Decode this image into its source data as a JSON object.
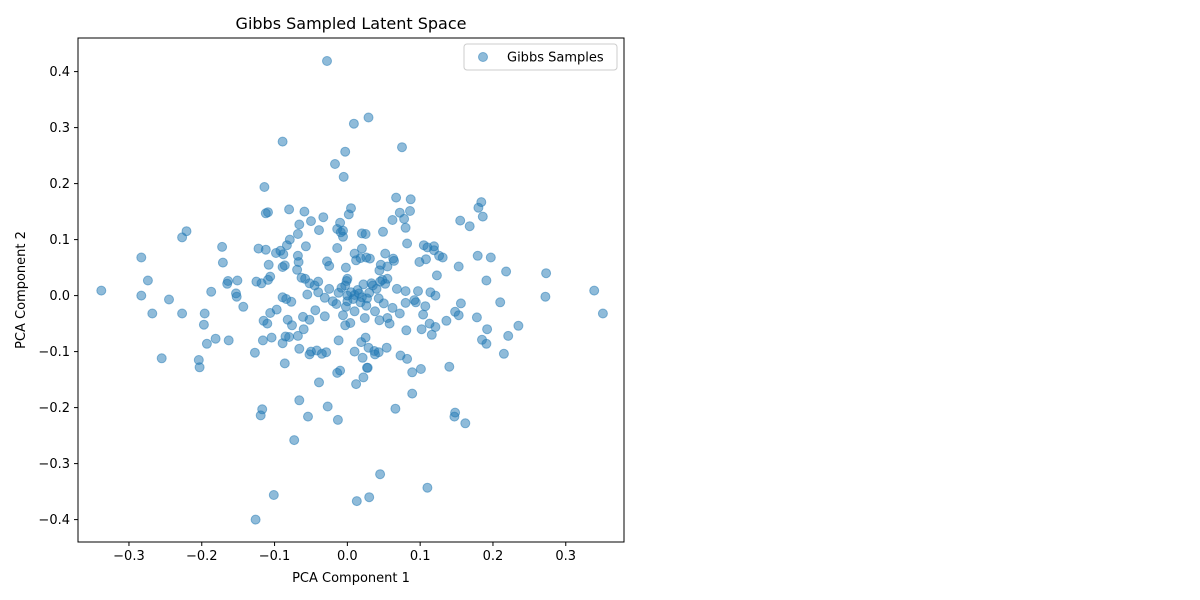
{
  "chart_data": {
    "type": "scatter",
    "title": "Gibbs Sampled Latent Space",
    "xlabel": "PCA Component 1",
    "ylabel": "PCA Component 2",
    "xlim": [
      -0.37,
      0.38
    ],
    "ylim": [
      -0.44,
      0.46
    ],
    "xticks": [
      -0.3,
      -0.2,
      -0.1,
      0.0,
      0.1,
      0.2,
      0.3
    ],
    "yticks": [
      -0.4,
      -0.3,
      -0.2,
      -0.1,
      0.0,
      0.1,
      0.2,
      0.3,
      0.4
    ],
    "xtick_labels": [
      "−0.3",
      "−0.2",
      "−0.1",
      "0.0",
      "0.1",
      "0.2",
      "0.3"
    ],
    "ytick_labels": [
      "−0.4",
      "−0.3",
      "−0.2",
      "−0.1",
      "0.0",
      "0.1",
      "0.2",
      "0.3",
      "0.4"
    ],
    "grid": false,
    "legend_position": "upper right",
    "color": "#1f77b4",
    "alpha": 0.5,
    "series": [
      {
        "name": "Gibbs Samples",
        "points": [
          [
            -0.028,
            0.419
          ],
          [
            0.029,
            0.318
          ],
          [
            0.009,
            0.307
          ],
          [
            -0.089,
            0.275
          ],
          [
            0.075,
            0.265
          ],
          [
            -0.003,
            0.257
          ],
          [
            -0.017,
            0.235
          ],
          [
            -0.005,
            0.212
          ],
          [
            -0.114,
            0.194
          ],
          [
            0.067,
            0.175
          ],
          [
            0.087,
            0.172
          ],
          [
            0.184,
            0.167
          ],
          [
            0.18,
            0.157
          ],
          [
            -0.08,
            0.154
          ],
          [
            0.005,
            0.156
          ],
          [
            -0.059,
            0.15
          ],
          [
            -0.109,
            0.149
          ],
          [
            -0.112,
            0.147
          ],
          [
            0.072,
            0.148
          ],
          [
            0.086,
            0.151
          ],
          [
            0.002,
            0.145
          ],
          [
            0.078,
            0.137
          ],
          [
            0.186,
            0.141
          ],
          [
            -0.033,
            0.14
          ],
          [
            -0.05,
            0.133
          ],
          [
            0.062,
            0.135
          ],
          [
            0.155,
            0.134
          ],
          [
            0.168,
            0.124
          ],
          [
            -0.066,
            0.127
          ],
          [
            -0.01,
            0.13
          ],
          [
            0.08,
            0.121
          ],
          [
            -0.039,
            0.117
          ],
          [
            -0.221,
            0.115
          ],
          [
            -0.014,
            0.119
          ],
          [
            -0.009,
            0.113
          ],
          [
            -0.006,
            0.116
          ],
          [
            0.049,
            0.114
          ],
          [
            0.02,
            0.111
          ],
          [
            0.025,
            0.11
          ],
          [
            -0.068,
            0.11
          ],
          [
            -0.227,
            0.104
          ],
          [
            -0.079,
            0.1
          ],
          [
            -0.006,
            0.105
          ],
          [
            -0.057,
            0.088
          ],
          [
            -0.083,
            0.09
          ],
          [
            0.082,
            0.093
          ],
          [
            0.105,
            0.09
          ],
          [
            0.119,
            0.088
          ],
          [
            -0.172,
            0.087
          ],
          [
            -0.122,
            0.084
          ],
          [
            -0.112,
            0.082
          ],
          [
            -0.092,
            0.08
          ],
          [
            -0.098,
            0.076
          ],
          [
            -0.088,
            0.074
          ],
          [
            -0.068,
            0.071
          ],
          [
            -0.014,
            0.085
          ],
          [
            0.02,
            0.084
          ],
          [
            0.11,
            0.086
          ],
          [
            0.119,
            0.081
          ],
          [
            0.01,
            0.075
          ],
          [
            0.026,
            0.068
          ],
          [
            0.031,
            0.066
          ],
          [
            0.052,
            0.075
          ],
          [
            0.063,
            0.066
          ],
          [
            0.064,
            0.062
          ],
          [
            0.126,
            0.071
          ],
          [
            0.131,
            0.068
          ],
          [
            0.179,
            0.071
          ],
          [
            0.197,
            0.068
          ],
          [
            -0.283,
            0.068
          ],
          [
            0.153,
            0.052
          ],
          [
            0.218,
            0.043
          ],
          [
            0.273,
            0.04
          ],
          [
            0.108,
            0.065
          ],
          [
            0.012,
            0.063
          ],
          [
            0.018,
            0.067
          ],
          [
            -0.028,
            0.061
          ],
          [
            -0.025,
            0.053
          ],
          [
            -0.067,
            0.06
          ],
          [
            -0.108,
            0.055
          ],
          [
            -0.086,
            0.054
          ],
          [
            -0.089,
            0.051
          ],
          [
            -0.171,
            0.059
          ],
          [
            0.099,
            0.06
          ],
          [
            0.046,
            0.055
          ],
          [
            0.055,
            0.052
          ],
          [
            0.044,
            0.045
          ],
          [
            -0.002,
            0.05
          ],
          [
            -0.069,
            0.046
          ],
          [
            -0.106,
            0.034
          ],
          [
            -0.109,
            0.028
          ],
          [
            -0.274,
            0.027
          ],
          [
            -0.164,
            0.026
          ],
          [
            -0.165,
            0.021
          ],
          [
            -0.151,
            0.027
          ],
          [
            -0.125,
            0.025
          ],
          [
            -0.118,
            0.022
          ],
          [
            0.123,
            0.036
          ],
          [
            0.191,
            0.027
          ],
          [
            0.055,
            0.03
          ],
          [
            0.045,
            0.025
          ],
          [
            0.033,
            0.022
          ],
          [
            -0.001,
            0.026
          ],
          [
            0.0,
            0.03
          ],
          [
            -0.04,
            0.025
          ],
          [
            -0.052,
            0.022
          ],
          [
            -0.058,
            0.03
          ],
          [
            -0.063,
            0.032
          ],
          [
            0.068,
            0.012
          ],
          [
            0.08,
            0.008
          ],
          [
            0.097,
            0.008
          ],
          [
            0.114,
            0.006
          ],
          [
            0.339,
            0.009
          ],
          [
            -0.338,
            0.009
          ],
          [
            -0.187,
            0.007
          ],
          [
            -0.153,
            0.004
          ],
          [
            -0.152,
            -0.002
          ],
          [
            -0.283,
            0.0
          ],
          [
            -0.245,
            -0.007
          ],
          [
            0.272,
            -0.002
          ],
          [
            0.121,
            0.0
          ],
          [
            0.092,
            -0.008
          ],
          [
            0.094,
            -0.012
          ],
          [
            0.08,
            -0.013
          ],
          [
            -0.084,
            -0.006
          ],
          [
            -0.089,
            -0.003
          ],
          [
            -0.077,
            -0.011
          ],
          [
            -0.055,
            0.002
          ],
          [
            0.01,
            0.001
          ],
          [
            0.02,
            -0.003
          ],
          [
            0.027,
            -0.005
          ],
          [
            0.016,
            0.004
          ],
          [
            0.005,
            0.006
          ],
          [
            0.0,
            0.0
          ],
          [
            0.008,
            -0.006
          ],
          [
            0.03,
            0.005
          ],
          [
            0.04,
            0.012
          ],
          [
            0.052,
            0.021
          ],
          [
            0.035,
            0.018
          ],
          [
            0.048,
            0.028
          ],
          [
            -0.003,
            0.018
          ],
          [
            -0.008,
            0.014
          ],
          [
            0.018,
            -0.012
          ],
          [
            0.026,
            -0.018
          ],
          [
            0.038,
            -0.028
          ],
          [
            -0.015,
            -0.015
          ],
          [
            -0.02,
            -0.01
          ],
          [
            -0.002,
            -0.02
          ],
          [
            0.01,
            -0.028
          ],
          [
            -0.006,
            -0.035
          ],
          [
            0.022,
            0.02
          ],
          [
            -0.012,
            0.005
          ],
          [
            0.0,
            -0.01
          ],
          [
            0.014,
            0.01
          ],
          [
            -0.025,
            0.012
          ],
          [
            -0.031,
            -0.004
          ],
          [
            -0.04,
            0.006
          ],
          [
            -0.045,
            0.018
          ],
          [
            0.043,
            -0.005
          ],
          [
            0.05,
            -0.014
          ],
          [
            0.062,
            -0.022
          ],
          [
            0.072,
            -0.032
          ],
          [
            0.055,
            -0.04
          ],
          [
            -0.268,
            -0.032
          ],
          [
            -0.227,
            -0.032
          ],
          [
            -0.196,
            -0.032
          ],
          [
            -0.197,
            -0.052
          ],
          [
            -0.143,
            -0.02
          ],
          [
            -0.106,
            -0.031
          ],
          [
            -0.097,
            -0.025
          ],
          [
            -0.115,
            -0.045
          ],
          [
            -0.11,
            -0.05
          ],
          [
            -0.082,
            -0.043
          ],
          [
            -0.076,
            -0.053
          ],
          [
            -0.061,
            -0.038
          ],
          [
            -0.052,
            -0.043
          ],
          [
            -0.06,
            -0.06
          ],
          [
            -0.044,
            -0.026
          ],
          [
            -0.031,
            -0.037
          ],
          [
            -0.003,
            -0.053
          ],
          [
            0.004,
            -0.049
          ],
          [
            0.024,
            -0.04
          ],
          [
            0.044,
            -0.044
          ],
          [
            0.058,
            -0.05
          ],
          [
            0.081,
            -0.062
          ],
          [
            0.102,
            -0.06
          ],
          [
            0.104,
            -0.034
          ],
          [
            0.107,
            -0.019
          ],
          [
            0.113,
            -0.05
          ],
          [
            0.116,
            -0.07
          ],
          [
            0.121,
            -0.056
          ],
          [
            0.136,
            -0.045
          ],
          [
            0.148,
            -0.029
          ],
          [
            0.153,
            -0.035
          ],
          [
            0.156,
            -0.014
          ],
          [
            0.178,
            -0.039
          ],
          [
            0.192,
            -0.06
          ],
          [
            0.21,
            -0.012
          ],
          [
            0.235,
            -0.054
          ],
          [
            0.351,
            -0.032
          ],
          [
            -0.255,
            -0.112
          ],
          [
            -0.204,
            -0.115
          ],
          [
            -0.203,
            -0.128
          ],
          [
            -0.193,
            -0.086
          ],
          [
            -0.181,
            -0.077
          ],
          [
            -0.163,
            -0.08
          ],
          [
            -0.127,
            -0.102
          ],
          [
            -0.116,
            -0.08
          ],
          [
            -0.104,
            -0.075
          ],
          [
            -0.089,
            -0.085
          ],
          [
            -0.085,
            -0.073
          ],
          [
            -0.08,
            -0.074
          ],
          [
            -0.068,
            -0.072
          ],
          [
            -0.066,
            -0.095
          ],
          [
            -0.05,
            -0.1
          ],
          [
            -0.052,
            -0.105
          ],
          [
            -0.042,
            -0.098
          ],
          [
            -0.035,
            -0.104
          ],
          [
            -0.029,
            -0.101
          ],
          [
            -0.086,
            -0.121
          ],
          [
            -0.012,
            -0.08
          ],
          [
            -0.01,
            -0.134
          ],
          [
            -0.014,
            -0.138
          ],
          [
            0.01,
            -0.1
          ],
          [
            0.019,
            -0.083
          ],
          [
            0.025,
            -0.075
          ],
          [
            0.021,
            -0.111
          ],
          [
            0.029,
            -0.093
          ],
          [
            0.037,
            -0.099
          ],
          [
            0.038,
            -0.105
          ],
          [
            0.043,
            -0.101
          ],
          [
            0.054,
            -0.093
          ],
          [
            0.073,
            -0.107
          ],
          [
            0.082,
            -0.113
          ],
          [
            0.089,
            -0.137
          ],
          [
            0.101,
            -0.131
          ],
          [
            0.14,
            -0.127
          ],
          [
            0.185,
            -0.079
          ],
          [
            0.191,
            -0.086
          ],
          [
            0.215,
            -0.104
          ],
          [
            0.221,
            -0.072
          ],
          [
            0.027,
            -0.129
          ],
          [
            0.028,
            -0.129
          ],
          [
            0.022,
            -0.146
          ],
          [
            0.012,
            -0.158
          ],
          [
            -0.039,
            -0.155
          ],
          [
            -0.066,
            -0.187
          ],
          [
            -0.117,
            -0.203
          ],
          [
            -0.119,
            -0.214
          ],
          [
            -0.027,
            -0.198
          ],
          [
            -0.054,
            -0.216
          ],
          [
            -0.013,
            -0.222
          ],
          [
            0.066,
            -0.202
          ],
          [
            0.089,
            -0.175
          ],
          [
            0.148,
            -0.209
          ],
          [
            0.147,
            -0.216
          ],
          [
            0.162,
            -0.228
          ],
          [
            -0.073,
            -0.258
          ],
          [
            0.045,
            -0.319
          ],
          [
            0.11,
            -0.343
          ],
          [
            -0.101,
            -0.356
          ],
          [
            0.03,
            -0.36
          ],
          [
            0.013,
            -0.367
          ],
          [
            -0.126,
            -0.4
          ]
        ]
      }
    ]
  }
}
